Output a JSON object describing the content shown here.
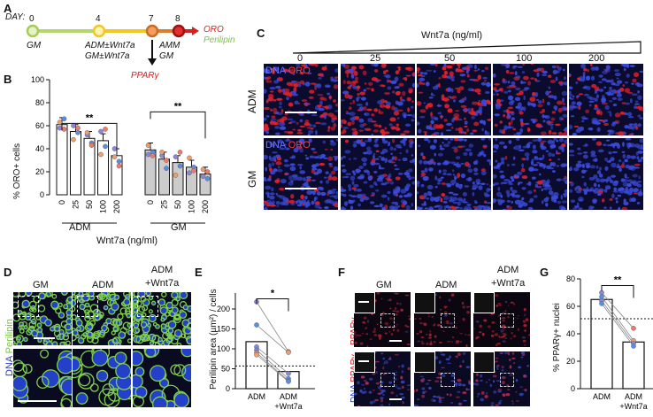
{
  "panels": {
    "A": "A",
    "B": "B",
    "C": "C",
    "D": "D",
    "E": "E",
    "F": "F",
    "G": "G"
  },
  "timeline": {
    "day_label": "DAY:",
    "days": [
      "0",
      "4",
      "7",
      "8"
    ],
    "gm": "GM",
    "adm_wnt": "ADM±Wnt7a",
    "gm_wnt": "GM±Wnt7a",
    "amm": "AMM",
    "gm2": "GM",
    "oro": "ORO",
    "perilipin": "Perilipin",
    "ppar": "PPARγ",
    "colors": {
      "d0": "#b5d66a",
      "d4": "#f2c623",
      "d7": "#e07b2e",
      "d8": "#d42020"
    }
  },
  "panelC": {
    "title": "Wnt7a (ng/ml)",
    "cols": [
      "0",
      "25",
      "50",
      "100",
      "200"
    ],
    "rows": [
      "ADM",
      "GM"
    ],
    "stain_dna": "DNA",
    "stain_oro": "ORO"
  },
  "panelD": {
    "cols": [
      "GM",
      "ADM",
      "ADM\n+Wnt7a"
    ],
    "stain_dna": "DNA",
    "stain_per": "Perilipin"
  },
  "panelE": {
    "ylabel": "Perilipin area (µm²) / cells",
    "ticks": [
      "0",
      "50",
      "100",
      "150",
      "200"
    ],
    "xlabels": [
      "ADM",
      "ADM\n+Wnt7a"
    ],
    "sig": "*"
  },
  "panelF": {
    "cols": [
      "GM",
      "ADM",
      "ADM\n+Wnt7a"
    ],
    "row1": "PPARγ",
    "row2_dna": "DNA",
    "row2_ppar": "PPARγ"
  },
  "panelG": {
    "ylabel": "% PPARγ+ nuclei",
    "ticks": [
      "0",
      "20",
      "40",
      "60",
      "80"
    ],
    "xlabels": [
      "ADM",
      "ADM\n+Wnt7a"
    ],
    "sig": "**"
  },
  "chart_data": [
    {
      "type": "bar",
      "panel": "B",
      "ylabel": "% ORO+ cells",
      "xlabel": "Wnt7a (ng/ml)",
      "ylim": [
        0,
        100
      ],
      "yticks": [
        "0",
        "20",
        "40",
        "60",
        "80",
        "100"
      ],
      "categories": [
        "0",
        "25",
        "50",
        "100",
        "200"
      ],
      "groups": [
        "ADM",
        "GM"
      ],
      "series": [
        {
          "name": "ADM",
          "color": "#ffffff",
          "values": [
            61,
            55,
            49,
            47,
            34
          ],
          "points": [
            [
              58,
              66,
              63,
              57
            ],
            [
              60,
              54,
              48,
              58
            ],
            [
              52,
              45,
              54,
              43
            ],
            [
              55,
              42,
              35,
              57
            ],
            [
              40,
              29,
              33,
              25
            ]
          ]
        },
        {
          "name": "GM",
          "color": "#cccccc",
          "values": [
            39,
            31,
            28,
            24,
            18
          ],
          "points": [
            [
              35,
              37,
              43,
              34
            ],
            [
              34,
              23,
              37,
              30
            ],
            [
              33,
              25,
              17,
              37
            ],
            [
              19,
              24,
              32,
              21
            ],
            [
              16,
              14,
              22,
              20
            ]
          ]
        }
      ],
      "significance": [
        "**",
        "**"
      ]
    },
    {
      "type": "bar",
      "panel": "E",
      "ylim": [
        0,
        240
      ],
      "categories": [
        "ADM",
        "ADM+Wnt7a"
      ],
      "values": [
        118,
        43
      ],
      "points": [
        [
          218,
          160,
          105,
          97,
          90,
          85
        ],
        [
          93,
          91,
          38,
          25,
          20,
          18
        ]
      ],
      "dotted_ref": 57
    },
    {
      "type": "bar",
      "panel": "G",
      "ylim": [
        0,
        80
      ],
      "categories": [
        "ADM",
        "ADM+Wnt7a"
      ],
      "values": [
        65,
        34
      ],
      "points": [
        [
          70,
          67,
          64,
          62
        ],
        [
          44,
          35,
          33,
          31
        ]
      ],
      "dotted_ref": 51
    }
  ]
}
